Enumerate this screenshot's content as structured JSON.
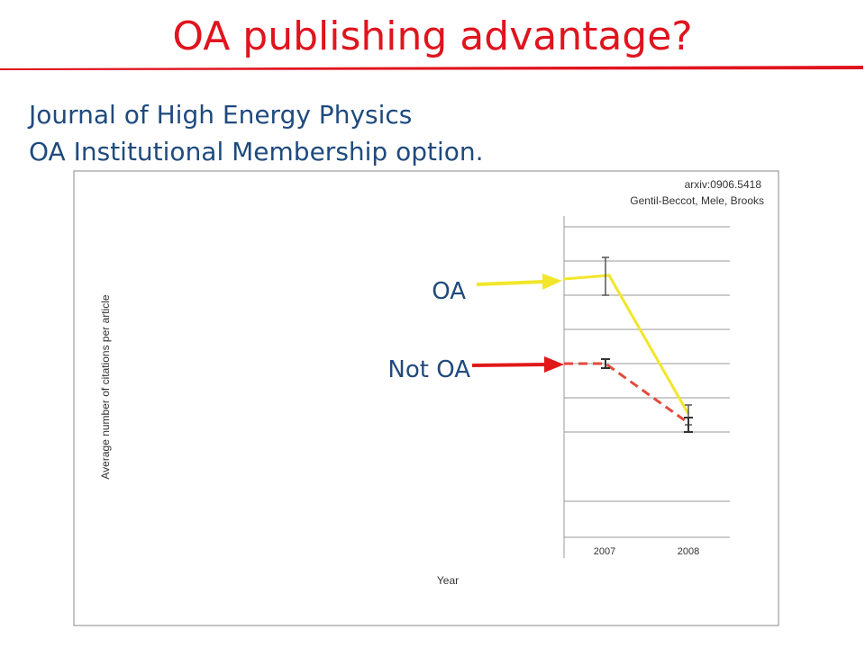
{
  "slide": {
    "title": "OA publishing advantage?",
    "subtitle_lines": [
      "Journal of High Energy Physics",
      "OA Institutional Membership option."
    ],
    "figure": {
      "source": "arxiv:0906.5418",
      "authors": "Gentil-Beccot, Mele, Brooks",
      "y_axis_label": "Average number of citations per article",
      "x_axis_label": "Year",
      "categories": [
        "2007",
        "2008"
      ]
    },
    "annotations": [
      "OA",
      "Not OA"
    ]
  }
}
